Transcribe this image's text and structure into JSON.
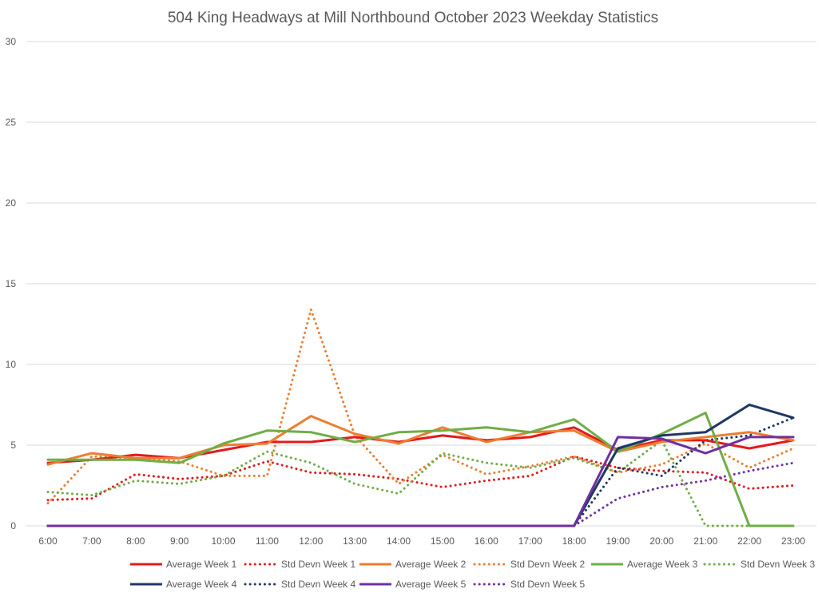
{
  "chart_data": {
    "type": "line",
    "title": "504 King Headways at Mill Northbound October 2023 Weekday Statistics",
    "xlabel": "",
    "ylabel": "",
    "ylim": [
      0,
      30
    ],
    "yticks": [
      0,
      5,
      10,
      15,
      20,
      25,
      30
    ],
    "grid": true,
    "legend_position": "bottom",
    "categories": [
      "6:00",
      "7:00",
      "8:00",
      "9:00",
      "10:00",
      "11:00",
      "12:00",
      "13:00",
      "14:00",
      "15:00",
      "16:00",
      "17:00",
      "18:00",
      "19:00",
      "20:00",
      "21:00",
      "22:00",
      "23:00"
    ],
    "series": [
      {
        "name": "Average Week 1",
        "color": "#e31a1c",
        "style": "solid",
        "values": [
          3.9,
          4.1,
          4.4,
          4.2,
          4.7,
          5.2,
          5.2,
          5.5,
          5.2,
          5.6,
          5.3,
          5.5,
          6.1,
          4.7,
          5.3,
          5.3,
          4.8,
          5.3
        ]
      },
      {
        "name": "Std Devn Week 1",
        "color": "#e31a1c",
        "style": "dotted",
        "values": [
          1.6,
          1.7,
          3.2,
          2.9,
          3.1,
          4.0,
          3.3,
          3.2,
          2.9,
          2.4,
          2.8,
          3.1,
          4.3,
          3.6,
          3.4,
          3.3,
          2.3,
          2.5
        ]
      },
      {
        "name": "Average Week 2",
        "color": "#ed7d31",
        "style": "solid",
        "values": [
          3.8,
          4.5,
          4.2,
          4.2,
          5.0,
          5.1,
          6.8,
          5.7,
          5.1,
          6.1,
          5.2,
          5.8,
          5.9,
          4.6,
          5.2,
          5.5,
          5.8,
          5.3
        ]
      },
      {
        "name": "Std Devn Week 2",
        "color": "#ed7d31",
        "style": "dotted",
        "values": [
          1.4,
          4.3,
          4.2,
          4.0,
          3.1,
          3.1,
          13.4,
          5.6,
          2.6,
          4.4,
          3.2,
          3.7,
          4.3,
          3.3,
          3.8,
          5.1,
          3.6,
          4.8
        ]
      },
      {
        "name": "Average Week 3",
        "color": "#70ad47",
        "style": "solid",
        "values": [
          4.1,
          4.1,
          4.1,
          3.9,
          5.1,
          5.9,
          5.8,
          5.2,
          5.8,
          5.9,
          6.1,
          5.8,
          6.6,
          4.6,
          5.7,
          7.0,
          0,
          0
        ]
      },
      {
        "name": "Std Devn Week 3",
        "color": "#70ad47",
        "style": "dotted",
        "values": [
          2.1,
          1.9,
          2.8,
          2.6,
          3.1,
          4.6,
          3.9,
          2.6,
          2.0,
          4.5,
          3.9,
          3.6,
          4.2,
          3.3,
          5.3,
          0,
          0,
          0
        ]
      },
      {
        "name": "Average Week 4",
        "color": "#203864",
        "style": "solid",
        "values": [
          0,
          0,
          0,
          0,
          0,
          0,
          0,
          0,
          0,
          0,
          0,
          0,
          0,
          4.8,
          5.6,
          5.8,
          7.5,
          6.7
        ]
      },
      {
        "name": "Std Devn Week 4",
        "color": "#203864",
        "style": "dotted",
        "values": [
          0,
          0,
          0,
          0,
          0,
          0,
          0,
          0,
          0,
          0,
          0,
          0,
          0,
          3.6,
          3.1,
          5.3,
          5.6,
          6.7
        ]
      },
      {
        "name": "Average Week 5",
        "color": "#7030a0",
        "style": "solid",
        "values": [
          0,
          0,
          0,
          0,
          0,
          0,
          0,
          0,
          0,
          0,
          0,
          0,
          0,
          5.5,
          5.4,
          4.5,
          5.5,
          5.5
        ]
      },
      {
        "name": "Std Devn Week 5",
        "color": "#7030a0",
        "style": "dotted",
        "values": [
          0,
          0,
          0,
          0,
          0,
          0,
          0,
          0,
          0,
          0,
          0,
          0,
          0,
          1.7,
          2.4,
          2.8,
          3.4,
          3.9
        ]
      }
    ]
  }
}
